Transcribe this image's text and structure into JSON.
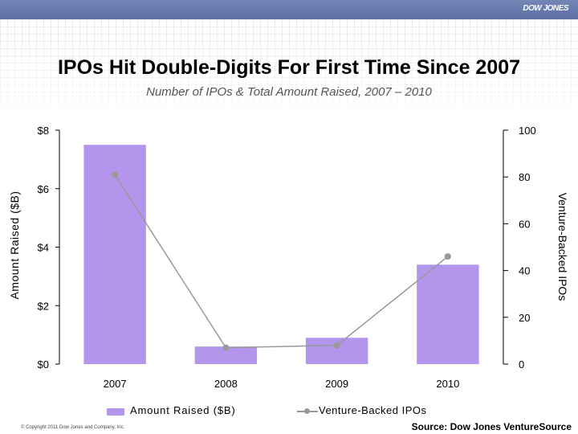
{
  "header": {
    "brand": "DOW JONES"
  },
  "slide": {
    "title": "IPOs Hit Double-Digits For First Time Since 2007",
    "subtitle": "Number of IPOs & Total Amount Raised, 2007 – 2010"
  },
  "chart_data": {
    "type": "bar",
    "categories": [
      "2007",
      "2008",
      "2009",
      "2010"
    ],
    "series": [
      {
        "name": "Amount Raised ($B)",
        "type": "bar",
        "axis": "left",
        "values": [
          7.5,
          0.6,
          0.9,
          3.4
        ],
        "color": "#b395ec"
      },
      {
        "name": "Venture-Backed IPOs",
        "type": "line",
        "axis": "right",
        "values": [
          81,
          7,
          8,
          46
        ],
        "color": "#999999"
      }
    ],
    "ylabel": "Amount Raised ($B)",
    "y2label": "Venture-Backed IPOs",
    "ylim": [
      0,
      8
    ],
    "y2lim": [
      0,
      100
    ],
    "yticks": [
      "$0",
      "$2",
      "$4",
      "$6",
      "$8"
    ],
    "y2ticks": [
      "0",
      "20",
      "40",
      "60",
      "80",
      "100"
    ],
    "legend": "bottom"
  },
  "legend": {
    "bar_label": "Amount Raised ($B)",
    "line_label": "Venture-Backed IPOs"
  },
  "footer": {
    "copyright": "© Copyright 2011 Dow Jones and Company, Inc.",
    "source": "Source: Dow Jones VentureSource"
  }
}
